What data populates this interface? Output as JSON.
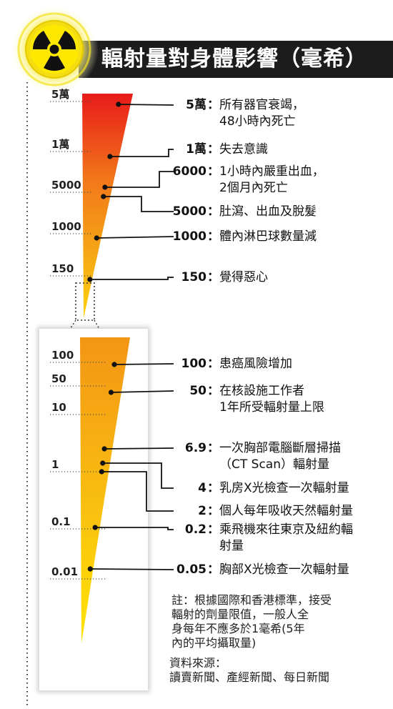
{
  "title": "輻射量對身體影響（毫希）",
  "icon": "radiation-hazard-icon",
  "colors": {
    "title_bg": "#1c1c1c",
    "wedge_top": "#e81a1a",
    "wedge_mid": "#f39514",
    "wedge_bottom": "#ffe400",
    "glow": "#f5e51a"
  },
  "chart_data": [
    {
      "type": "bar",
      "y_scale": "log",
      "ylim": [
        150,
        50000
      ],
      "unit": "毫希",
      "y_ticks": [
        "5萬",
        "1萬",
        "5000",
        "1000",
        "150"
      ],
      "points": [
        {
          "value": 50000,
          "label": "5萬",
          "desc": [
            "所有器官衰竭，",
            "48小時內死亡"
          ]
        },
        {
          "value": 10000,
          "label": "1萬",
          "desc": [
            "失去意識"
          ]
        },
        {
          "value": 6000,
          "label": "6000",
          "desc": [
            "1小時內嚴重出血，",
            "2個月內死亡"
          ]
        },
        {
          "value": 5000,
          "label": "5000",
          "desc": [
            "肚瀉、出血及脫髮"
          ]
        },
        {
          "value": 1000,
          "label": "1000",
          "desc": [
            "體內淋巴球數量減"
          ]
        },
        {
          "value": 150,
          "label": "150",
          "desc": [
            "覺得惡心"
          ]
        }
      ]
    },
    {
      "type": "bar",
      "y_scale": "log",
      "ylim": [
        0.01,
        100
      ],
      "unit": "毫希",
      "y_ticks": [
        "100",
        "50",
        "10",
        "1",
        "0.1",
        "0.01"
      ],
      "points": [
        {
          "value": 100,
          "label": "100",
          "desc": [
            "患癌風險增加"
          ]
        },
        {
          "value": 50,
          "label": "50",
          "desc": [
            "在核設施工作者",
            "1年所受輻射量上限"
          ]
        },
        {
          "value": 6.9,
          "label": "6.9",
          "desc": [
            "一次胸部電腦斷層掃描",
            "（CT Scan）輻射量"
          ]
        },
        {
          "value": 4,
          "label": "4",
          "desc": [
            "乳房X光檢查一次輻射量"
          ]
        },
        {
          "value": 2,
          "label": "2",
          "desc": [
            "個人每年吸收天然輻射量"
          ]
        },
        {
          "value": 0.2,
          "label": "0.2",
          "desc": [
            "乘飛機來往東京及紐約輻",
            "射量"
          ]
        },
        {
          "value": 0.05,
          "label": "0.05",
          "desc": [
            "胸部X光檢查一次輻射量"
          ]
        }
      ]
    }
  ],
  "note": "註：根據國際和香港標準，接受\n輻射的劑量限值，一般人全\n身每年不應多於1毫希(5年\n內的平均攝取量)",
  "source": "資料來源：\n讀賣新聞、產經新聞、每日新聞"
}
